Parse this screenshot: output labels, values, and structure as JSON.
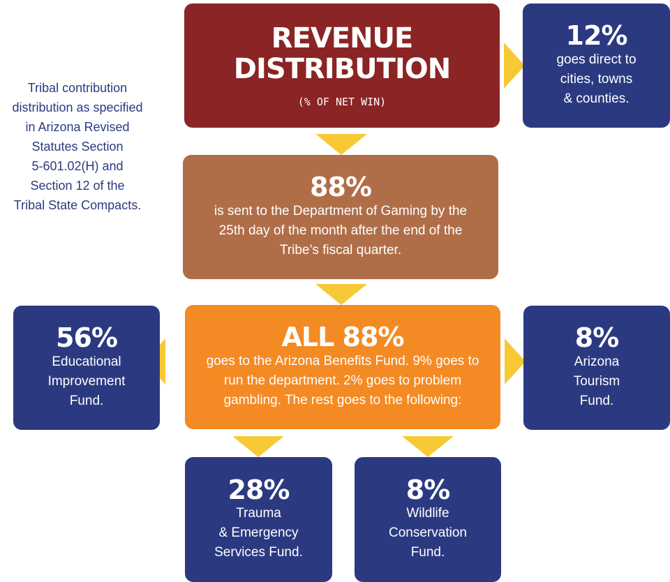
{
  "note": "Tribal contribution\ndistribution as specified\nin Arizona Revised\nStatutes Section\n5-601.02(H) and\nSection 12 of the\nTribal State Compacts.",
  "header": {
    "title": "REVENUE DISTRIBUTION",
    "subtitle": "(% OF NET WIN)"
  },
  "direct": {
    "percent": "12%",
    "text": "goes direct to\ncities, towns\n& counties."
  },
  "gaming": {
    "percent": "88%",
    "text": "is sent to the Department of Gaming by the\n25th day of the month after the end of the\nTribe’s fiscal quarter."
  },
  "all": {
    "percent": "ALL 88%",
    "text": "goes to the Arizona Benefits Fund. 9% goes to\nrun the department. 2% goes to problem\ngambling. The rest goes to the following:"
  },
  "education": {
    "percent": "56%",
    "text": "Educational\nImprovement\nFund."
  },
  "tourism": {
    "percent": "8%",
    "text": "Arizona\nTourism\nFund."
  },
  "trauma": {
    "percent": "28%",
    "text": "Trauma\n& Emergency\nServices Fund."
  },
  "wildlife": {
    "percent": "8%",
    "text": "Wildlife\nConservation\nFund."
  },
  "colors": {
    "title_bg": "#8b2424",
    "gaming_bg": "#b06e48",
    "all_bg": "#f48a24",
    "fund_bg": "#2b3a80",
    "arrow": "#f7ca35",
    "note_text": "#2b3a80"
  }
}
